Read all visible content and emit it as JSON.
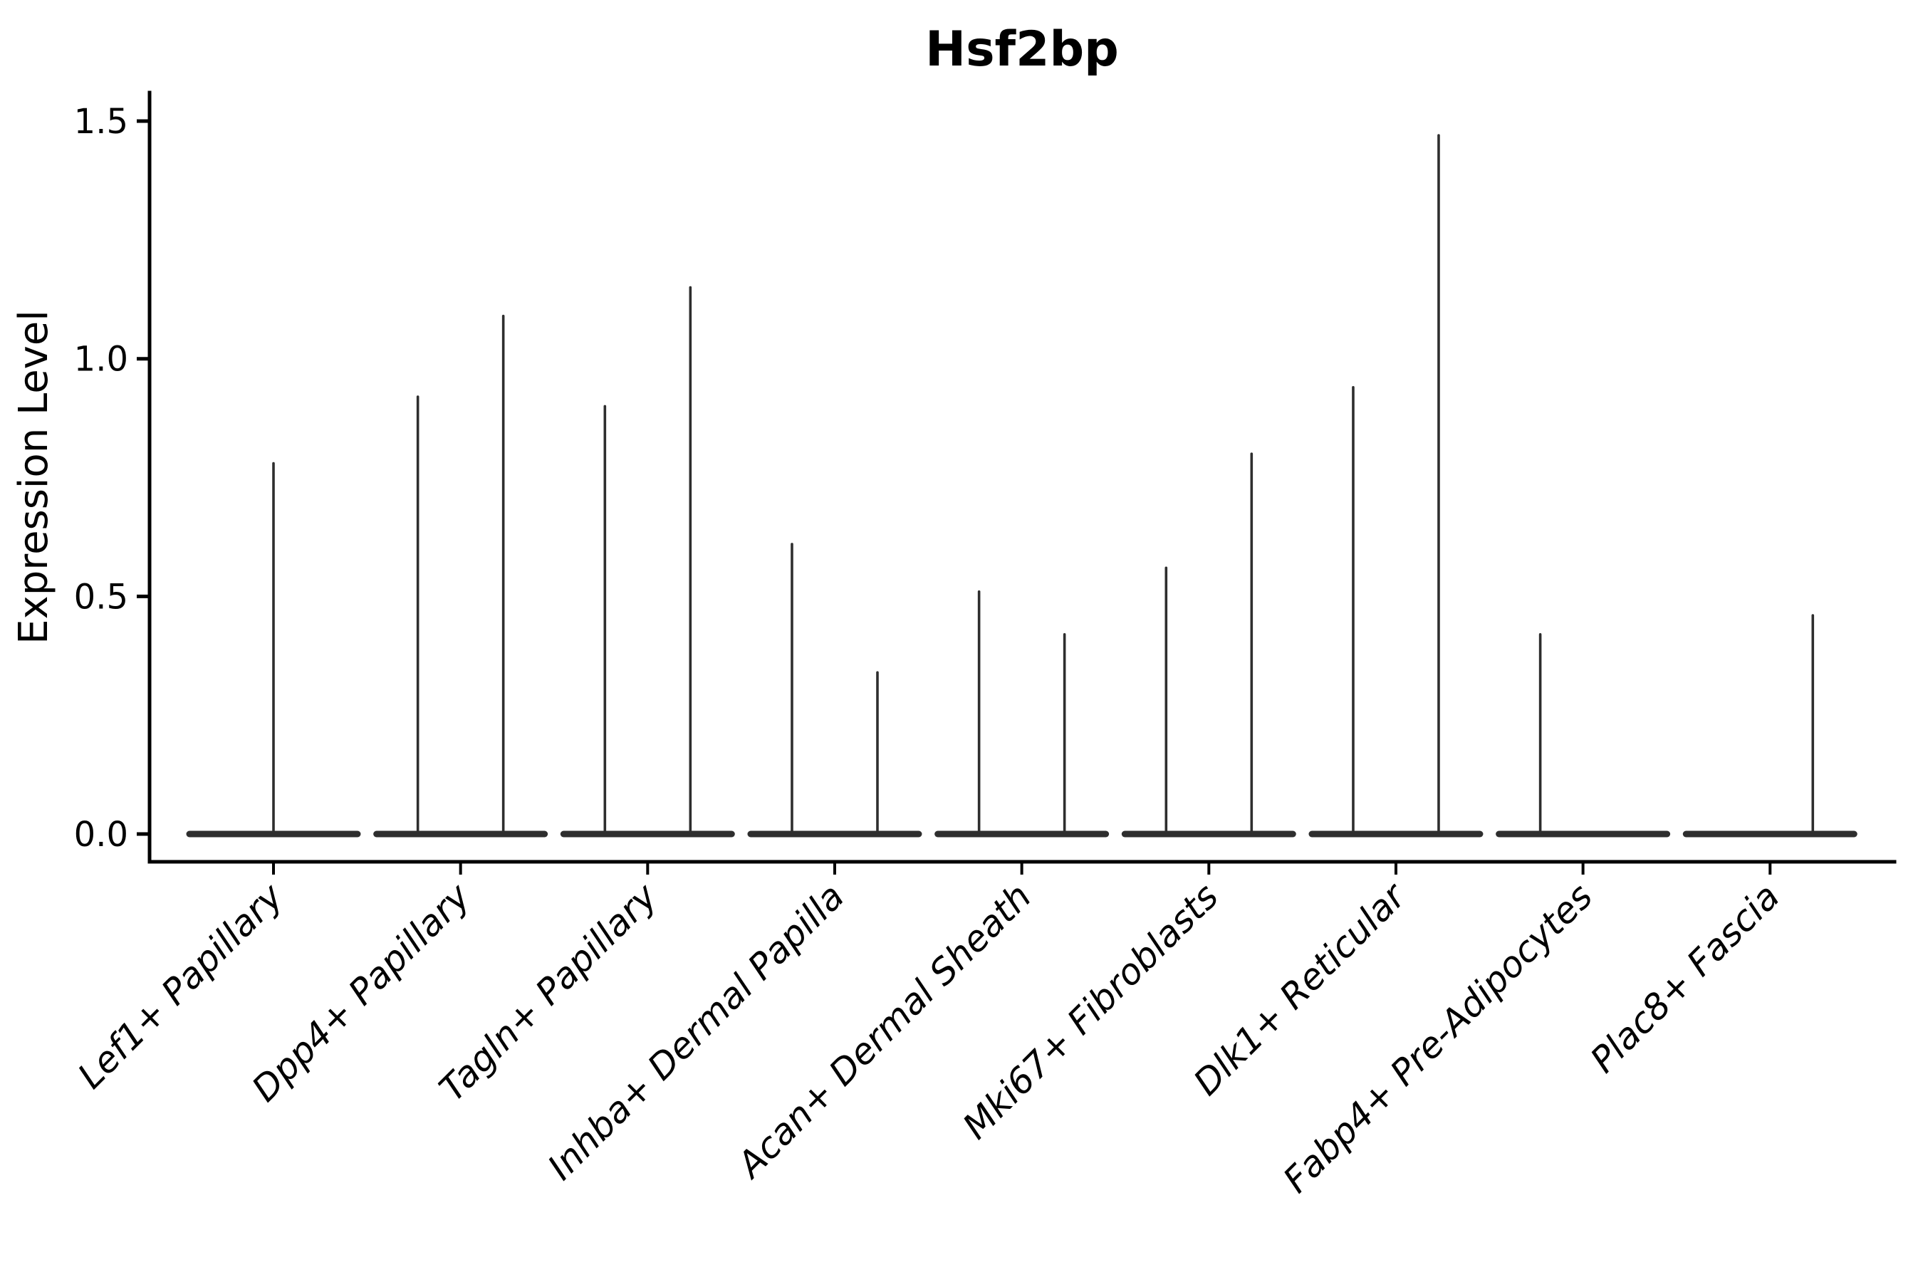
{
  "page": {
    "background": "#ffffff"
  },
  "chart_data": {
    "type": "violin",
    "title": "Hsf2bp",
    "xlabel": "",
    "ylabel": "Expression Level",
    "ylim": [
      0,
      1.5
    ],
    "ytick_labels": [
      "0.0",
      "0.5",
      "1.0",
      "1.5"
    ],
    "ytick_values": [
      0,
      0.5,
      1.0,
      1.5
    ],
    "grid": false,
    "legend": "none",
    "violin_color": "#2e2e2e",
    "axis_color": "#000000",
    "categories": [
      "Lef1+ Papillary",
      "Dpp4+ Papillary",
      "Tagln+ Papillary",
      "Inhba+ Dermal Papilla",
      "Acan+ Dermal Sheath",
      "Mki67+ Fibroblasts",
      "Dlk1+ Reticular",
      "Fabp4+ Pre-Adipocytes",
      "Plac8+ Fascia"
    ],
    "violins": [
      {
        "category": "Lef1+ Papillary",
        "baseline_at": 0,
        "spikes": [
          {
            "position": "center",
            "max": 0.78
          }
        ]
      },
      {
        "category": "Dpp4+ Papillary",
        "baseline_at": 0,
        "spikes": [
          {
            "position": "left",
            "max": 0.92
          },
          {
            "position": "right",
            "max": 1.09
          }
        ]
      },
      {
        "category": "Tagln+ Papillary",
        "baseline_at": 0,
        "spikes": [
          {
            "position": "left",
            "max": 0.9
          },
          {
            "position": "right",
            "max": 1.15
          }
        ]
      },
      {
        "category": "Inhba+ Dermal Papilla",
        "baseline_at": 0,
        "spikes": [
          {
            "position": "left",
            "max": 0.61
          },
          {
            "position": "right",
            "max": 0.34
          }
        ]
      },
      {
        "category": "Acan+ Dermal Sheath",
        "baseline_at": 0,
        "spikes": [
          {
            "position": "left",
            "max": 0.51
          },
          {
            "position": "right",
            "max": 0.42
          }
        ]
      },
      {
        "category": "Mki67+ Fibroblasts",
        "baseline_at": 0,
        "spikes": [
          {
            "position": "left",
            "max": 0.56
          },
          {
            "position": "right",
            "max": 0.8
          }
        ]
      },
      {
        "category": "Dlk1+ Reticular",
        "baseline_at": 0,
        "spikes": [
          {
            "position": "left",
            "max": 0.94
          },
          {
            "position": "right",
            "max": 1.47
          }
        ]
      },
      {
        "category": "Fabp4+ Pre-Adipocytes",
        "baseline_at": 0,
        "spikes": [
          {
            "position": "left",
            "max": 0.42
          }
        ]
      },
      {
        "category": "Plac8+ Fascia",
        "baseline_at": 0,
        "spikes": [
          {
            "position": "right",
            "max": 0.46
          }
        ]
      }
    ]
  }
}
